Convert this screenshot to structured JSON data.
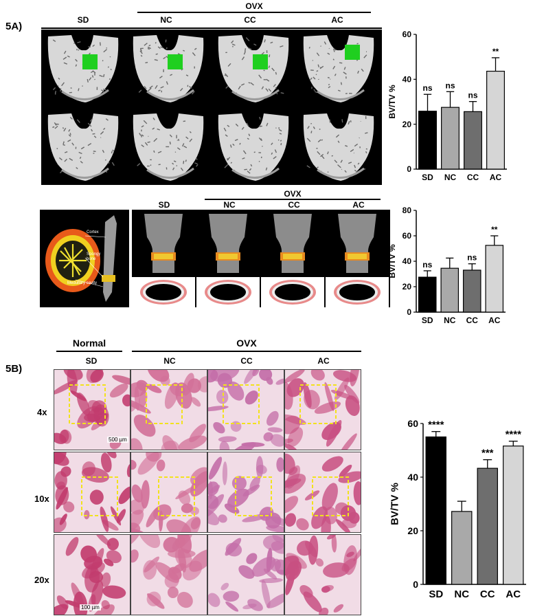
{
  "panel_a": {
    "label": "5A)",
    "group_header": "OVX",
    "columns": [
      "SD",
      "NC",
      "CC",
      "AC"
    ]
  },
  "panel_a2": {
    "group_header": "OVX",
    "columns": [
      "SD",
      "NC",
      "CC",
      "AC"
    ],
    "diagram_labels": {
      "cortex": "Cortex",
      "spongy": "Spongy bone",
      "medullary": "Medullary cavity"
    }
  },
  "panel_b": {
    "label": "5B)",
    "header_normal": "Normal",
    "header_ovx": "OVX",
    "columns": [
      "SD",
      "NC",
      "CC",
      "AC"
    ],
    "rows": [
      "4x",
      "10x",
      "20x"
    ],
    "scale_4x": "500 µm",
    "scale_20x": "100 µm"
  },
  "colors": {
    "SD": "#000000",
    "NC": "#a9a9a9",
    "CC": "#6e6e6e",
    "AC": "#d6d6d6",
    "green_roi": "#1fcf1f",
    "yellow_box": "#f2e21c",
    "he_pink": "#c2416e"
  },
  "chart_data": [
    {
      "type": "bar",
      "categories": [
        "SD",
        "NC",
        "CC",
        "AC"
      ],
      "values": [
        25.8,
        27.5,
        25.6,
        43.6
      ],
      "errors": [
        7.5,
        7.0,
        4.5,
        6.0
      ],
      "annotations": [
        "ns",
        "ns",
        "ns",
        "**"
      ],
      "ylabel": "BV/TV %",
      "ylim": [
        0,
        60
      ],
      "yticks": [
        0,
        20,
        40,
        60
      ]
    },
    {
      "type": "bar",
      "categories": [
        "SD",
        "NC",
        "CC",
        "AC"
      ],
      "values": [
        27.5,
        34.5,
        33.0,
        52.5
      ],
      "errors": [
        5.0,
        8.0,
        5.0,
        7.5
      ],
      "annotations": [
        "ns",
        "",
        "ns",
        "**"
      ],
      "ylabel": "BV/TV %",
      "ylim": [
        0,
        80
      ],
      "yticks": [
        0,
        20,
        40,
        60,
        80
      ]
    },
    {
      "type": "bar",
      "categories": [
        "SD",
        "NC",
        "CC",
        "AC"
      ],
      "values": [
        55.0,
        27.2,
        43.3,
        51.6
      ],
      "errors": [
        2.0,
        3.8,
        3.2,
        1.8
      ],
      "annotations": [
        "****",
        "",
        "***",
        "****"
      ],
      "ylabel": "BV/TV %",
      "ylim": [
        0,
        60
      ],
      "yticks": [
        0,
        20,
        40,
        60
      ]
    }
  ]
}
